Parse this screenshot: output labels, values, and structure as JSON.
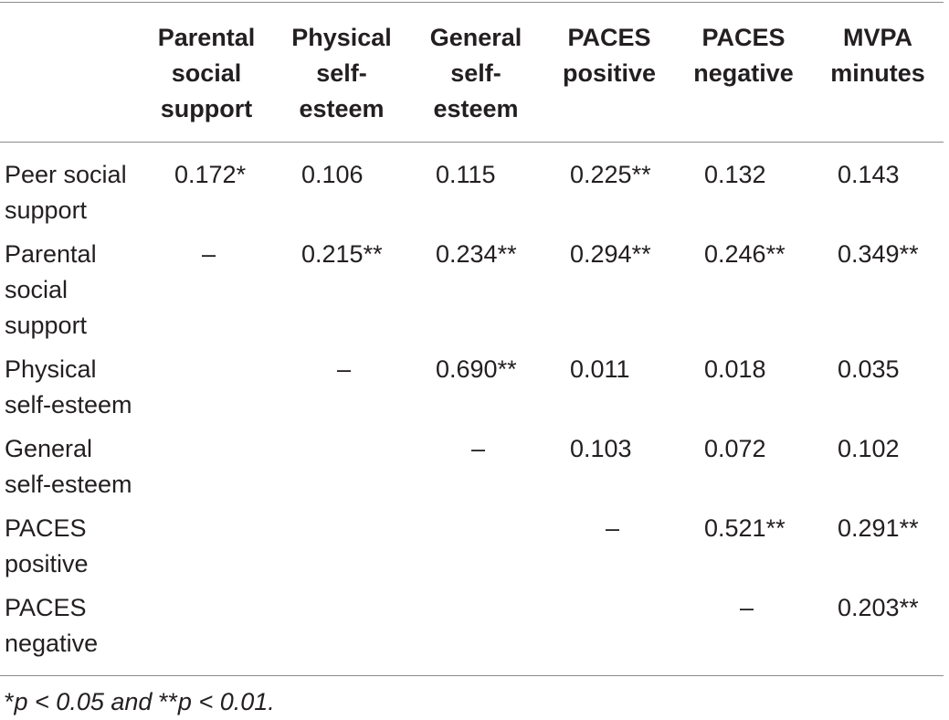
{
  "table": {
    "columns": [
      "Parental\nsocial\nsupport",
      "Physical\nself-\nesteem",
      "General\nself-\nesteem",
      "PACES\npositive",
      "PACES\nnegative",
      "MVPA\nminutes"
    ],
    "rows": [
      {
        "label": "Peer social\nsupport",
        "cells": [
          "0.172*",
          "0.106",
          "0.115",
          "0.225**",
          "0.132",
          "0.143"
        ]
      },
      {
        "label": "Parental\nsocial\nsupport",
        "cells": [
          "–",
          "0.215**",
          "0.234**",
          "0.294**",
          "0.246**",
          "0.349**"
        ]
      },
      {
        "label": "Physical\nself-esteem",
        "cells": [
          "",
          "–",
          "0.690**",
          "0.011",
          "0.018",
          "0.035"
        ]
      },
      {
        "label": "General\nself-esteem",
        "cells": [
          "",
          "",
          "–",
          "0.103",
          "0.072",
          "0.102"
        ]
      },
      {
        "label": "PACES\npositive",
        "cells": [
          "",
          "",
          "",
          "–",
          "0.521**",
          "0.291**"
        ]
      },
      {
        "label": "PACES\nnegative",
        "cells": [
          "",
          "",
          "",
          "",
          "–",
          "0.203**"
        ]
      }
    ]
  },
  "footnote": {
    "star1": "*",
    "text1": "p < 0.05 and ",
    "star2": "**",
    "text2": "p < 0.01."
  }
}
